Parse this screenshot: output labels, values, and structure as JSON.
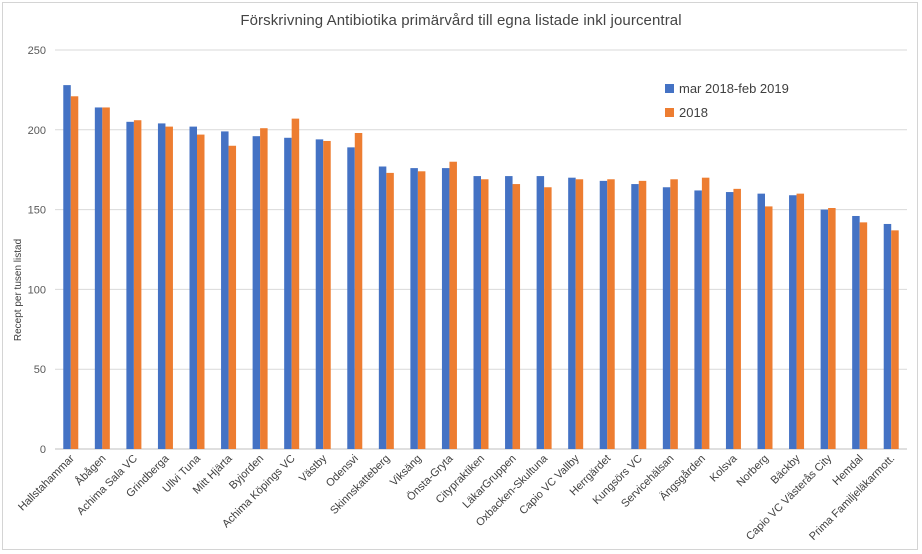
{
  "chart_data": {
    "type": "bar",
    "title": "Förskrivning Antibiotika primärvård till egna listade inkl jourcentral",
    "ylabel": "Recept per tusen listad",
    "xlabel": "",
    "ylim": [
      0,
      250
    ],
    "yticks": [
      0,
      50,
      100,
      150,
      200,
      250
    ],
    "grid": true,
    "legend_position": "top-right",
    "categories": [
      "Hallstahammar",
      "Åbågen",
      "Achima Sala VC",
      "Grindberga",
      "Ullvi Tuna",
      "Mitt Hjärta",
      "Byjorden",
      "Achima Köpings VC",
      "Västby",
      "Odensvi",
      "Skinnskatteberg",
      "Viksäng",
      "Önsta-Gryta",
      "Citypraktiken",
      "LäkarGruppen",
      "Oxbacken-Skultuna",
      "Capio VC Vallby",
      "Herrgärdet",
      "Kungsörs VC",
      "Servicehälsan",
      "Ängsgården",
      "Kolsva",
      "Norberg",
      "Bäckby",
      "Capio VC Västerås City",
      "Hemdal",
      "Prima Familjeläkarmott."
    ],
    "series": [
      {
        "name": "mar 2018-feb 2019",
        "color": "#4472c4",
        "values": [
          228,
          214,
          205,
          204,
          202,
          199,
          196,
          195,
          194,
          189,
          177,
          176,
          176,
          171,
          171,
          171,
          170,
          168,
          166,
          164,
          162,
          161,
          160,
          159,
          150,
          146,
          141
        ]
      },
      {
        "name": "2018",
        "color": "#ed7d31",
        "values": [
          221,
          214,
          206,
          202,
          197,
          190,
          201,
          207,
          193,
          198,
          173,
          174,
          180,
          169,
          166,
          164,
          169,
          169,
          168,
          169,
          170,
          163,
          152,
          160,
          151,
          142,
          137
        ]
      }
    ]
  }
}
